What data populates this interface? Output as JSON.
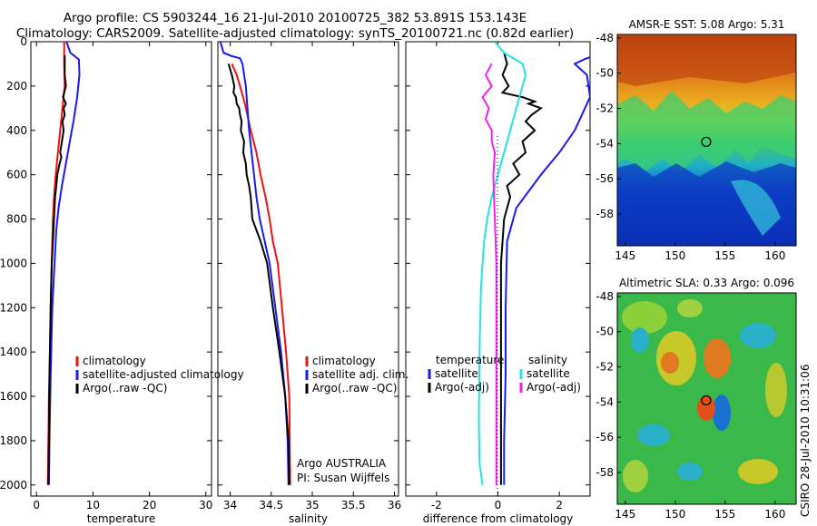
{
  "title_line1": "Argo profile: CS 5903244_16 21-Jul-2010 20100725_382 53.891S 153.143E",
  "title_line2": "Climatology: CARS2009. Satellite-adjusted climatology: synTS_20100721.nc (0.82d earlier)",
  "side_label": "CSIRO 28-Jul-2010 10:31:06",
  "colors": {
    "red": "#ee1111",
    "blue": "#1a1aee",
    "black": "#000000",
    "cyan": "#22e4e4",
    "magenta": "#ee22ee"
  },
  "chart_data": [
    {
      "type": "line",
      "xlabel": "temperature",
      "ylabel": "",
      "xlim": [
        -1,
        31
      ],
      "ylim": [
        2050,
        0
      ],
      "xticks": [
        0,
        10,
        20,
        30
      ],
      "yticks": [
        0,
        200,
        400,
        600,
        800,
        1000,
        1200,
        1400,
        1600,
        1800,
        2000
      ],
      "legend": [
        "climatology",
        "satellite-adjusted climatology",
        "Argo(..raw -QC)"
      ],
      "series": [
        {
          "name": "climatology",
          "color": "red",
          "x": [
            4.9,
            4.9,
            5.0,
            4.6,
            4.2,
            3.8,
            3.4,
            3.1,
            2.9,
            2.8,
            2.7,
            2.5,
            2.4,
            2.2,
            2.1,
            2.0
          ],
          "y": [
            0,
            100,
            200,
            300,
            400,
            500,
            600,
            700,
            800,
            900,
            1000,
            1200,
            1400,
            1600,
            1800,
            2000
          ]
        },
        {
          "name": "satellite-adjusted climatology",
          "color": "blue",
          "x": [
            5.3,
            6.0,
            7.5,
            7.6,
            7.2,
            6.6,
            5.9,
            5.2,
            4.5,
            3.9,
            3.5,
            3.2,
            2.8,
            2.5,
            2.3,
            2.2
          ],
          "y": [
            0,
            50,
            80,
            150,
            250,
            350,
            450,
            550,
            650,
            750,
            850,
            1000,
            1200,
            1500,
            1800,
            2000
          ]
        },
        {
          "name": "Argo(..raw -QC)",
          "color": "black",
          "x": [
            5.0,
            5.0,
            5.0,
            5.2,
            4.7,
            5.2,
            4.8,
            5.0,
            4.6,
            4.8,
            4.5,
            4.2,
            4.4,
            4.0,
            3.7,
            3.5,
            3.3,
            3.1,
            2.9,
            2.7,
            2.5,
            2.3,
            2.2,
            2.1
          ],
          "y": [
            60,
            100,
            150,
            200,
            250,
            280,
            300,
            330,
            360,
            400,
            450,
            500,
            520,
            560,
            600,
            650,
            700,
            800,
            900,
            1000,
            1200,
            1500,
            1800,
            2000
          ]
        }
      ]
    },
    {
      "type": "line",
      "xlabel": "salinity",
      "ylabel": "",
      "xlim": [
        33.85,
        36.05
      ],
      "ylim": [
        2050,
        0
      ],
      "xticks": [
        34,
        34.5,
        35,
        35.5,
        36
      ],
      "legend": [
        "climatology",
        "satellite adj. clim.",
        "Argo(..raw -QC)"
      ],
      "annotations": [
        "Argo AUSTRALIA",
        "PI: Susan Wijffels"
      ],
      "series": [
        {
          "name": "climatology",
          "color": "red",
          "x": [
            34.02,
            34.08,
            34.12,
            34.18,
            34.25,
            34.32,
            34.37,
            34.43,
            34.48,
            34.52,
            34.58,
            34.63,
            34.68,
            34.72,
            34.73
          ],
          "y": [
            100,
            150,
            200,
            280,
            400,
            500,
            600,
            700,
            800,
            900,
            1000,
            1200,
            1400,
            1600,
            2000
          ]
        },
        {
          "name": "satellite adj. clim.",
          "color": "blue",
          "x": [
            33.88,
            33.92,
            34.02,
            34.12,
            34.15,
            34.17,
            34.19,
            34.21,
            34.23,
            34.26,
            34.29,
            34.32,
            34.36,
            34.42,
            34.48,
            34.55,
            34.62,
            34.67,
            34.7,
            34.71
          ],
          "y": [
            0,
            50,
            65,
            75,
            100,
            150,
            200,
            300,
            400,
            500,
            600,
            700,
            800,
            900,
            1000,
            1200,
            1400,
            1600,
            1800,
            2000
          ]
        },
        {
          "name": "Argo(..raw -QC)",
          "color": "black",
          "x": [
            33.98,
            34.02,
            34.05,
            34.04,
            34.07,
            34.08,
            34.11,
            34.12,
            34.14,
            34.13,
            34.17,
            34.16,
            34.19,
            34.2,
            34.23,
            34.25,
            34.27,
            34.32,
            34.37,
            34.45,
            34.52,
            34.6,
            34.67,
            34.71,
            34.72
          ],
          "y": [
            100,
            150,
            200,
            230,
            250,
            280,
            300,
            330,
            360,
            400,
            450,
            500,
            550,
            600,
            650,
            700,
            800,
            850,
            900,
            1000,
            1200,
            1400,
            1600,
            1800,
            2000
          ]
        }
      ]
    },
    {
      "type": "line",
      "xlabel": "difference from climatology",
      "ylabel": "",
      "xlim": [
        -3,
        3
      ],
      "ylim": [
        2050,
        0
      ],
      "xticks": [
        -2,
        0,
        2
      ],
      "legend_columns": [
        {
          "header": "temperature",
          "items": [
            "satellite",
            "Argo(-adj)"
          ]
        },
        {
          "header": "salinity",
          "items": [
            "satellite",
            "Argo(-adj)"
          ]
        }
      ],
      "series": [
        {
          "name": "temperature satellite",
          "color": "blue",
          "x": [
            3.0,
            2.8,
            2.5,
            2.9,
            3.0,
            2.5,
            2.0,
            1.7,
            1.4,
            0.6,
            0.3,
            0.25,
            0.25,
            0.2,
            0.2
          ],
          "y": [
            70,
            80,
            100,
            150,
            250,
            400,
            500,
            550,
            600,
            750,
            900,
            1200,
            1500,
            1800,
            2000
          ]
        },
        {
          "name": "temperature Argo(-adj)",
          "color": "black",
          "x": [
            0.2,
            0.3,
            0.15,
            0.35,
            0.15,
            0.8,
            1.2,
            1.0,
            1.4,
            1.1,
            0.9,
            1.2,
            0.8,
            0.9,
            0.5,
            0.7,
            0.3,
            0.4,
            0.2,
            0.1,
            0.1,
            0.1,
            0.1
          ],
          "y": [
            50,
            100,
            150,
            200,
            230,
            250,
            270,
            280,
            300,
            330,
            360,
            400,
            450,
            500,
            550,
            600,
            650,
            700,
            800,
            1000,
            1400,
            1800,
            2000
          ]
        },
        {
          "name": "salinity satellite",
          "color": "cyan",
          "x": [
            -0.1,
            0.2,
            0.8,
            0.9,
            0.8,
            0.6,
            0.4,
            0.2,
            0.0,
            -0.2,
            -0.35,
            -0.45,
            -0.55,
            -0.6,
            -0.62,
            -0.6,
            -0.5
          ],
          "y": [
            0,
            50,
            100,
            150,
            200,
            300,
            400,
            500,
            600,
            700,
            800,
            900,
            1100,
            1400,
            1700,
            1900,
            2000
          ]
        },
        {
          "name": "salinity Argo(-adj)",
          "color": "magenta",
          "x": [
            -0.2,
            -0.4,
            -0.2,
            -0.5,
            -0.3,
            -0.4,
            -0.2,
            -0.2,
            -0.1,
            -0.15,
            -0.1,
            -0.05,
            -0.05,
            -0.05
          ],
          "y": [
            100,
            150,
            200,
            250,
            300,
            350,
            400,
            450,
            500,
            600,
            800,
            1000,
            1500,
            2000
          ]
        }
      ]
    },
    {
      "type": "heatmap",
      "title": "AMSR-E SST: 5.08 Argo: 5.31",
      "xlim": [
        144.2,
        162.1
      ],
      "ylim": [
        -59.8,
        -47.8
      ],
      "xticks": [
        145,
        150,
        155,
        160
      ],
      "yticks": [
        -48,
        -50,
        -52,
        -54,
        -56,
        -58
      ],
      "marker": {
        "lon": 153.1,
        "lat": -53.9
      }
    },
    {
      "type": "heatmap",
      "title": "Altimetric SLA: 0.33 Argo: 0.096",
      "xlim": [
        144.2,
        162.1
      ],
      "ylim": [
        -59.8,
        -47.8
      ],
      "xticks": [
        145,
        150,
        155,
        160
      ],
      "yticks": [
        -48,
        -50,
        -52,
        -54,
        -56,
        -58
      ],
      "marker": {
        "lon": 153.1,
        "lat": -53.9
      }
    }
  ]
}
